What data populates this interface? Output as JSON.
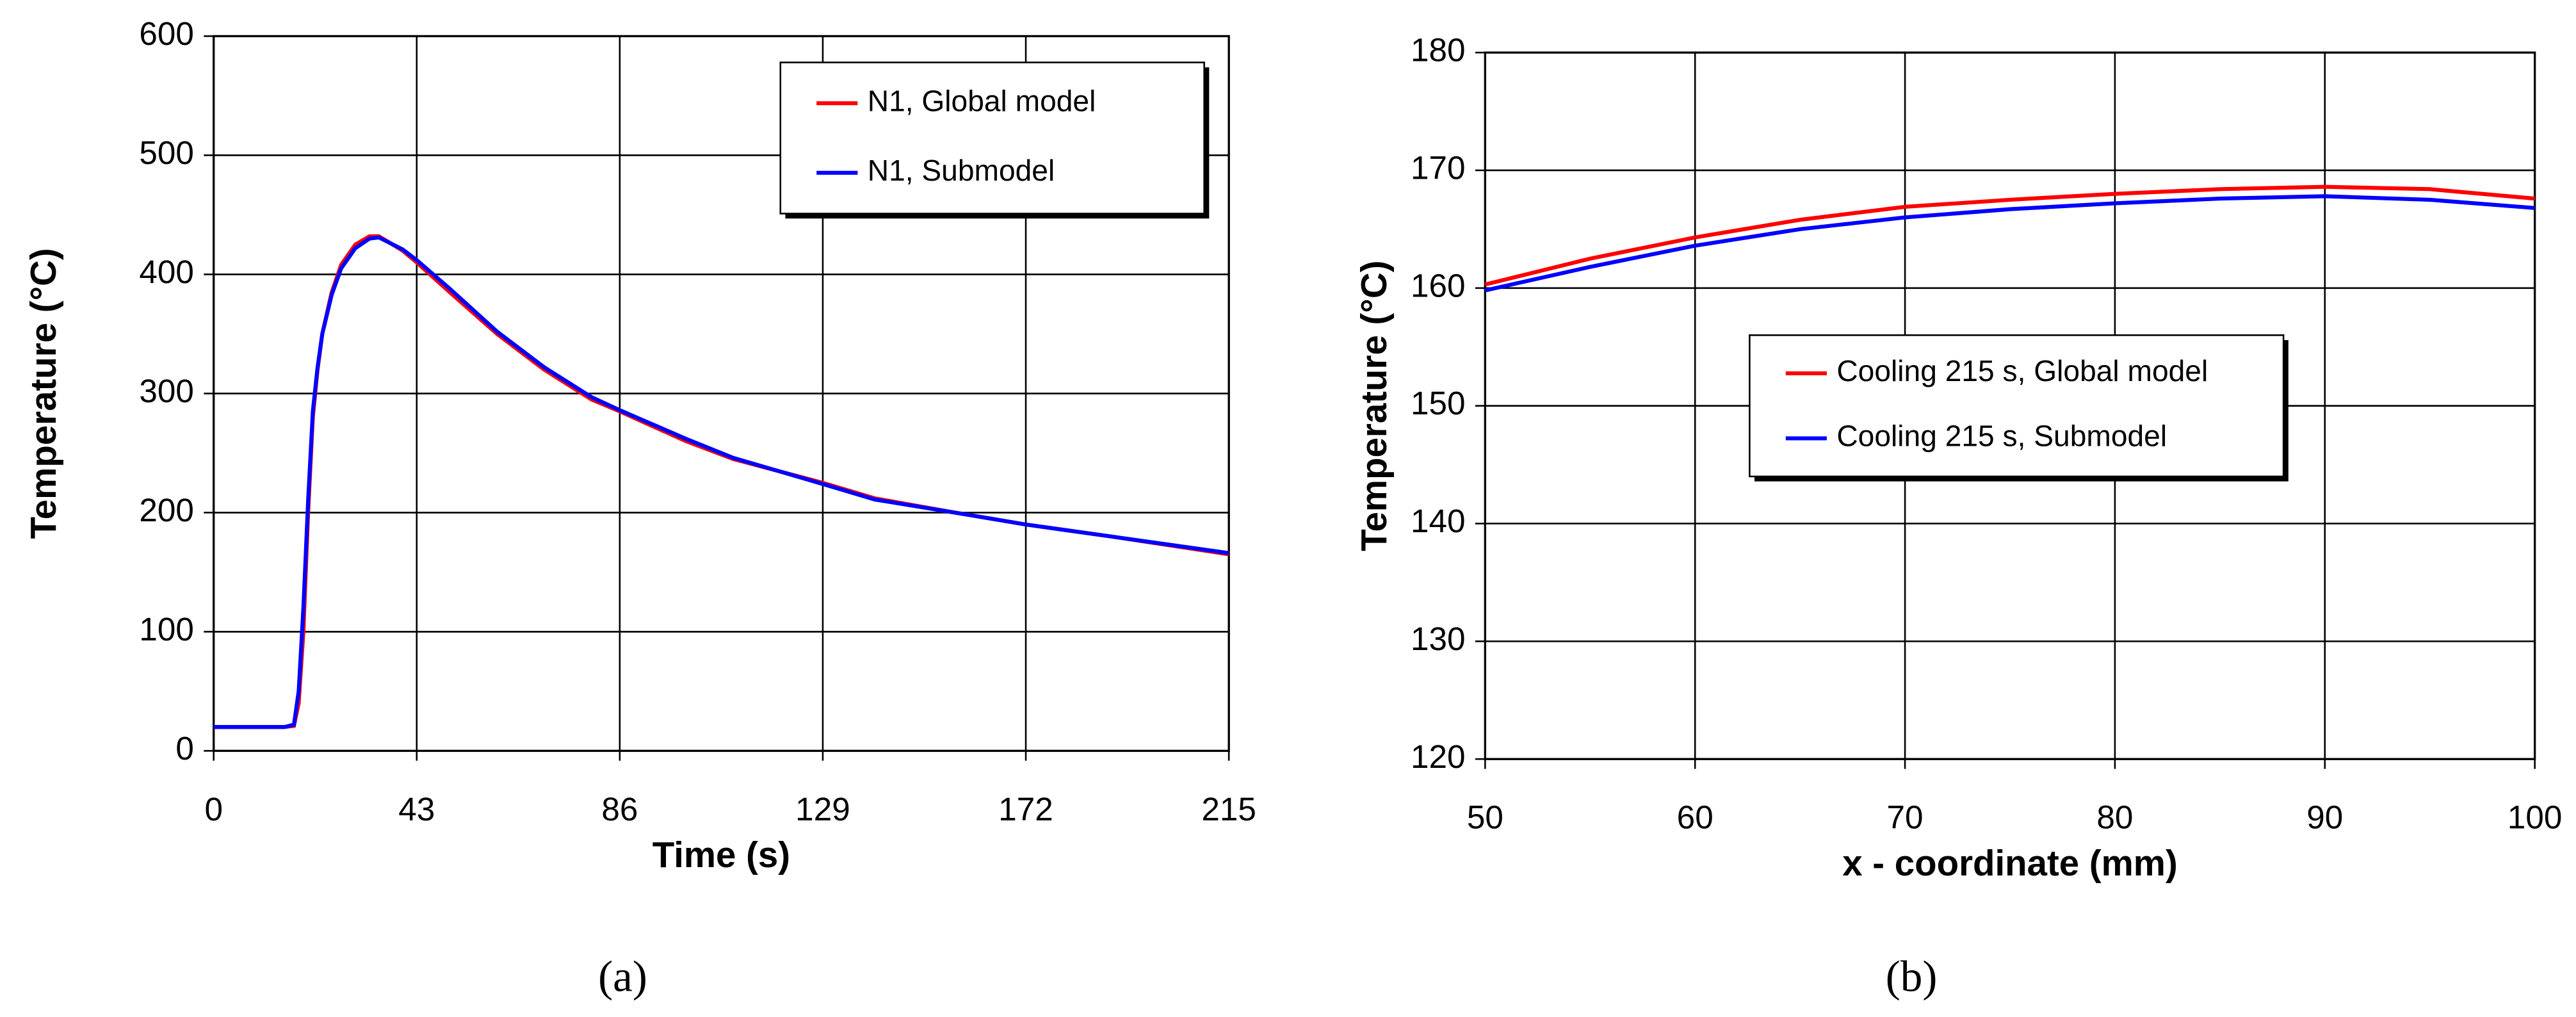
{
  "chart_data": [
    {
      "type": "line",
      "caption": "(a)",
      "xlabel": "Time (s)",
      "ylabel": "Temperature (°C)",
      "x": [
        0,
        15,
        17,
        18,
        19,
        20,
        21,
        22,
        23,
        25,
        27,
        30,
        33,
        35,
        40,
        43,
        50,
        60,
        70,
        80,
        86,
        100,
        110,
        129,
        140,
        157,
        172,
        190,
        215
      ],
      "series": [
        {
          "name": "N1, Global model",
          "color": "#ff0000",
          "values": [
            20,
            20,
            21,
            40,
            100,
            200,
            280,
            320,
            350,
            385,
            408,
            425,
            432,
            432,
            420,
            410,
            385,
            350,
            320,
            295,
            285,
            260,
            245,
            225,
            212,
            200,
            190,
            180,
            165
          ]
        },
        {
          "name": "N1, Submodel",
          "color": "#0000ff",
          "values": [
            20,
            20,
            22,
            50,
            120,
            210,
            285,
            322,
            350,
            383,
            405,
            422,
            430,
            431,
            421,
            412,
            388,
            352,
            322,
            297,
            286,
            262,
            246,
            224,
            211,
            200,
            190,
            180,
            166
          ]
        }
      ],
      "xlim": [
        0,
        215
      ],
      "xticks": [
        0,
        43,
        86,
        129,
        172,
        215
      ],
      "ylim": [
        0,
        600
      ],
      "yticks": [
        0,
        100,
        200,
        300,
        400,
        500,
        600
      ],
      "grid": true,
      "legend": "upper right"
    },
    {
      "type": "line",
      "caption": "(b)",
      "xlabel": "x - coordinate (mm)",
      "ylabel": "Temperature (°C)",
      "x": [
        50,
        55,
        60,
        65,
        70,
        75,
        80,
        85,
        90,
        95,
        100
      ],
      "series": [
        {
          "name": "Cooling 215 s, Global model",
          "color": "#ff0000",
          "values": [
            160.3,
            162.5,
            164.3,
            165.8,
            166.9,
            167.5,
            168.0,
            168.4,
            168.6,
            168.4,
            167.6
          ]
        },
        {
          "name": "Cooling 215 s, Submodel",
          "color": "#0000ff",
          "values": [
            159.8,
            161.8,
            163.6,
            165.0,
            166.0,
            166.7,
            167.2,
            167.6,
            167.8,
            167.5,
            166.8
          ]
        }
      ],
      "xlim": [
        50,
        100
      ],
      "xticks": [
        50,
        60,
        70,
        80,
        90,
        100
      ],
      "ylim": [
        120,
        180
      ],
      "yticks": [
        120,
        130,
        140,
        150,
        160,
        170,
        180
      ],
      "grid": true,
      "legend": "center"
    }
  ]
}
